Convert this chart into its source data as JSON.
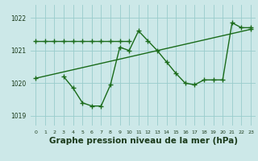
{
  "bg_color": "#cce8e8",
  "grid_color": "#99cccc",
  "line_color": "#1a6b1a",
  "line_width": 1.0,
  "marker": "+",
  "marker_size": 4,
  "marker_edge_width": 1.0,
  "title": "Graphe pression niveau de la mer (hPa)",
  "title_fontsize": 7.5,
  "xlim": [
    -0.5,
    23.5
  ],
  "ylim": [
    1018.7,
    1022.4
  ],
  "yticks": [
    1019,
    1020,
    1021,
    1022
  ],
  "xticks": [
    0,
    1,
    2,
    3,
    4,
    5,
    6,
    7,
    8,
    9,
    10,
    11,
    12,
    13,
    14,
    15,
    16,
    17,
    18,
    19,
    20,
    21,
    22,
    23
  ],
  "series": [
    {
      "x": [
        0,
        1,
        2,
        3,
        4,
        5,
        6,
        7,
        8,
        9,
        10
      ],
      "y": [
        1021.3,
        1021.3,
        1021.3,
        1021.3,
        1021.3,
        1021.3,
        1021.3,
        1021.3,
        1021.3,
        1021.3,
        1021.3
      ]
    },
    {
      "x": [
        0,
        23
      ],
      "y": [
        1020.15,
        1021.65
      ]
    },
    {
      "x": [
        3,
        4,
        5,
        6,
        7,
        8,
        9,
        10,
        11,
        12,
        13,
        14,
        15,
        16,
        17,
        18,
        19,
        20,
        21,
        22,
        23
      ],
      "y": [
        1020.2,
        1019.85,
        1019.4,
        1019.3,
        1019.3,
        1019.95,
        1021.1,
        1021.0,
        1021.6,
        1021.3,
        1021.0,
        1020.65,
        1020.3,
        1020.0,
        1019.95,
        1020.1,
        1020.1,
        1020.1,
        1021.85,
        1021.7,
        1021.7
      ]
    }
  ]
}
